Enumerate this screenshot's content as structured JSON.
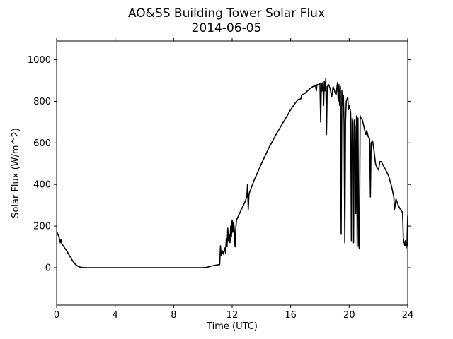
{
  "chart_data": {
    "type": "line",
    "title": "AO&SS Building Tower Solar Flux",
    "subtitle": "2014-06-05",
    "xlabel": "Time (UTC)",
    "ylabel": "Solar Flux (W/m^2)",
    "xlim": [
      0,
      24
    ],
    "ylim": [
      -180,
      1090
    ],
    "xticks": [
      0,
      4,
      8,
      12,
      16,
      20,
      24
    ],
    "yticks": [
      0,
      200,
      400,
      600,
      800,
      1000
    ],
    "grid": false,
    "line_color": "#000000",
    "series": [
      {
        "points": [
          [
            0.0,
            175
          ],
          [
            0.15,
            150
          ],
          [
            0.25,
            120
          ],
          [
            0.3,
            135
          ],
          [
            0.35,
            115
          ],
          [
            0.5,
            100
          ],
          [
            0.7,
            80
          ],
          [
            0.9,
            55
          ],
          [
            1.1,
            32
          ],
          [
            1.3,
            15
          ],
          [
            1.5,
            5
          ],
          [
            1.7,
            1
          ],
          [
            2.0,
            0
          ],
          [
            4.0,
            0
          ],
          [
            8.0,
            0
          ],
          [
            10.0,
            0
          ],
          [
            10.3,
            2
          ],
          [
            10.6,
            8
          ],
          [
            10.9,
            12
          ],
          [
            11.15,
            15
          ],
          [
            11.2,
            105
          ],
          [
            11.25,
            60
          ],
          [
            11.35,
            80
          ],
          [
            11.4,
            65
          ],
          [
            11.5,
            95
          ],
          [
            11.55,
            70
          ],
          [
            11.6,
            140
          ],
          [
            11.65,
            100
          ],
          [
            11.7,
            190
          ],
          [
            11.75,
            130
          ],
          [
            11.8,
            160
          ],
          [
            11.85,
            120
          ],
          [
            11.9,
            200
          ],
          [
            11.95,
            150
          ],
          [
            12.0,
            230
          ],
          [
            12.05,
            170
          ],
          [
            12.1,
            220
          ],
          [
            12.15,
            180
          ],
          [
            12.2,
            100
          ],
          [
            12.25,
            190
          ],
          [
            12.3,
            230
          ],
          [
            12.6,
            275
          ],
          [
            12.9,
            320
          ],
          [
            13.0,
            340
          ],
          [
            13.05,
            400
          ],
          [
            13.1,
            280
          ],
          [
            13.15,
            355
          ],
          [
            13.5,
            420
          ],
          [
            14.0,
            500
          ],
          [
            14.5,
            575
          ],
          [
            15.0,
            640
          ],
          [
            15.5,
            700
          ],
          [
            15.8,
            735
          ],
          [
            16.0,
            760
          ],
          [
            16.3,
            790
          ],
          [
            16.5,
            808
          ],
          [
            16.7,
            812
          ],
          [
            16.75,
            830
          ],
          [
            16.9,
            835
          ],
          [
            17.0,
            840
          ],
          [
            17.3,
            860
          ],
          [
            17.5,
            870
          ],
          [
            17.7,
            875
          ],
          [
            17.75,
            850
          ],
          [
            17.8,
            880
          ],
          [
            17.9,
            880
          ],
          [
            18.0,
            885
          ],
          [
            18.05,
            700
          ],
          [
            18.1,
            885
          ],
          [
            18.15,
            850
          ],
          [
            18.2,
            890
          ],
          [
            18.25,
            780
          ],
          [
            18.3,
            895
          ],
          [
            18.35,
            850
          ],
          [
            18.4,
            910
          ],
          [
            18.45,
            640
          ],
          [
            18.5,
            870
          ],
          [
            18.6,
            880
          ],
          [
            18.7,
            860
          ],
          [
            18.8,
            820
          ],
          [
            18.9,
            870
          ],
          [
            19.0,
            850
          ],
          [
            19.1,
            830
          ],
          [
            19.2,
            890
          ],
          [
            19.25,
            800
          ],
          [
            19.3,
            880
          ],
          [
            19.35,
            780
          ],
          [
            19.4,
            870
          ],
          [
            19.45,
            160
          ],
          [
            19.5,
            850
          ],
          [
            19.55,
            780
          ],
          [
            19.6,
            830
          ],
          [
            19.65,
            700
          ],
          [
            19.7,
            120
          ],
          [
            19.75,
            700
          ],
          [
            19.8,
            800
          ],
          [
            19.9,
            820
          ],
          [
            19.95,
            760
          ],
          [
            20.0,
            780
          ],
          [
            20.1,
            750
          ],
          [
            20.15,
            130
          ],
          [
            20.2,
            720
          ],
          [
            20.25,
            700
          ],
          [
            20.3,
            120
          ],
          [
            20.35,
            710
          ],
          [
            20.4,
            680
          ],
          [
            20.45,
            260
          ],
          [
            20.5,
            730
          ],
          [
            20.55,
            100
          ],
          [
            20.6,
            720
          ],
          [
            20.65,
            110
          ],
          [
            20.7,
            90
          ],
          [
            20.75,
            730
          ],
          [
            20.8,
            720
          ],
          [
            20.9,
            710
          ],
          [
            21.0,
            680
          ],
          [
            21.1,
            650
          ],
          [
            21.15,
            640
          ],
          [
            21.2,
            660
          ],
          [
            21.3,
            630
          ],
          [
            21.4,
            620
          ],
          [
            21.45,
            340
          ],
          [
            21.5,
            600
          ],
          [
            21.6,
            610
          ],
          [
            21.7,
            560
          ],
          [
            21.8,
            500
          ],
          [
            21.9,
            480
          ],
          [
            22.0,
            470
          ],
          [
            22.1,
            510
          ],
          [
            22.2,
            510
          ],
          [
            22.3,
            495
          ],
          [
            22.5,
            470
          ],
          [
            22.7,
            440
          ],
          [
            22.9,
            390
          ],
          [
            23.05,
            340
          ],
          [
            23.1,
            280
          ],
          [
            23.2,
            330
          ],
          [
            23.35,
            300
          ],
          [
            23.5,
            280
          ],
          [
            23.65,
            265
          ],
          [
            23.7,
            140
          ],
          [
            23.8,
            105
          ],
          [
            23.85,
            130
          ],
          [
            23.9,
            95
          ],
          [
            23.95,
            110
          ],
          [
            24.0,
            250
          ]
        ]
      }
    ]
  }
}
